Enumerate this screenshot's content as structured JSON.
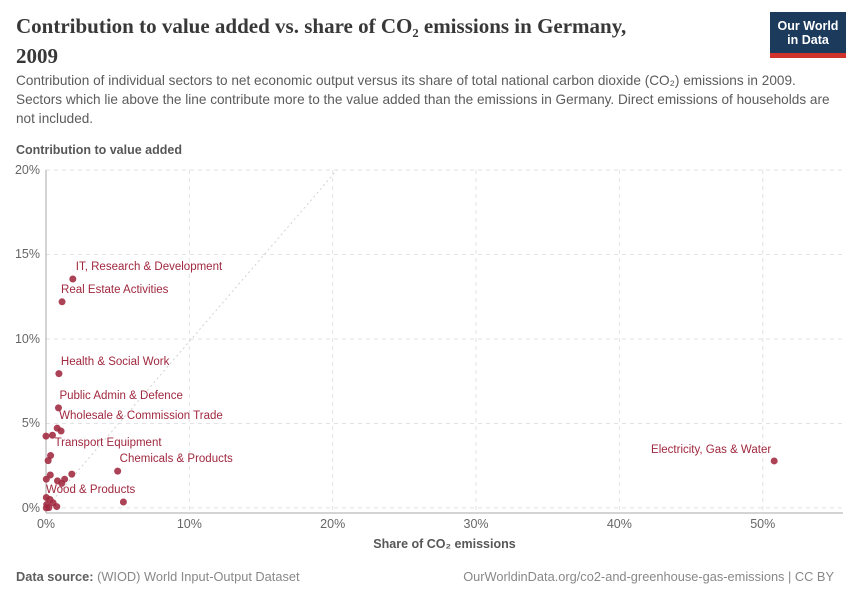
{
  "header": {
    "title_lines": [
      "Contribution to value added vs. share of CO₂ emissions in Germany,",
      "2009"
    ],
    "logo": {
      "line1": "Our World",
      "line2": "in Data"
    }
  },
  "subtitle": "Contribution of individual sectors to net economic output versus its share of total national carbon dioxide (CO₂) emissions in 2009. Sectors which lie above the line contribute more to the value added than the emissions in Germany. Direct emissions of households are not included.",
  "chart_data": {
    "type": "scatter",
    "title": "Contribution to value added vs. share of CO₂ emissions in Germany, 2009",
    "xlabel": "Share of CO₂ emissions",
    "ylabel": "Contribution to value added",
    "xlim": [
      0,
      55.6
    ],
    "ylim": [
      -0.3,
      20
    ],
    "x_ticks": [
      0,
      10,
      20,
      30,
      40,
      50
    ],
    "y_ticks": [
      0,
      5,
      10,
      15,
      20
    ],
    "tick_suffix": "%",
    "grid": true,
    "legend_position": "none",
    "reference_line": {
      "name": "parity line (share of emissions = share of value added)",
      "from": [
        0,
        0
      ],
      "to": [
        20.3,
        20
      ]
    },
    "series": [
      {
        "name": "Labeled sectors",
        "points": [
          {
            "label": "IT, Research & Development",
            "x": 1.87,
            "y": 13.55,
            "anchor": "start",
            "dx": 3,
            "dy": -5
          },
          {
            "label": "Real Estate Activities",
            "x": 1.12,
            "y": 12.2,
            "anchor": "start",
            "dx": -1,
            "dy": -5
          },
          {
            "label": "Health & Social Work",
            "x": 0.9,
            "y": 7.95,
            "anchor": "start",
            "dx": 2,
            "dy": -5
          },
          {
            "label": "Public Admin & Defence",
            "x": 0.87,
            "y": 5.92,
            "anchor": "start",
            "dx": 1,
            "dy": -5
          },
          {
            "label": "Wholesale & Commission Trade",
            "x": 0.78,
            "y": 4.72,
            "anchor": "start",
            "dx": 2,
            "dy": -5
          },
          {
            "label": "Transport Equipment",
            "x": 0.32,
            "y": 3.1,
            "anchor": "start",
            "dx": 4,
            "dy": -6
          },
          {
            "label": "Chemicals & Products",
            "x": 5.0,
            "y": 2.18,
            "anchor": "start",
            "dx": 2,
            "dy": -5
          },
          {
            "label": "Wood & Products",
            "x": 0.28,
            "y": 0.5,
            "anchor": "start",
            "dx": -4,
            "dy": -2
          },
          {
            "label": "Electricity, Gas & Water",
            "x": 50.8,
            "y": 2.78,
            "anchor": "end",
            "dx": -3,
            "dy": -4
          }
        ]
      },
      {
        "name": "Other sectors (unlabeled)",
        "points": [
          [
            0.0,
            4.25
          ],
          [
            0.45,
            4.3
          ],
          [
            1.05,
            4.55
          ],
          [
            0.15,
            2.8
          ],
          [
            0.3,
            1.95
          ],
          [
            0.02,
            1.7
          ],
          [
            0.8,
            1.6
          ],
          [
            1.3,
            1.7
          ],
          [
            1.8,
            2.0
          ],
          [
            1.1,
            1.45
          ],
          [
            0.02,
            0.62
          ],
          [
            0.05,
            0.2
          ],
          [
            0.5,
            0.3
          ],
          [
            0.75,
            0.08
          ],
          [
            0.2,
            0.02
          ],
          [
            0.02,
            0.0
          ],
          [
            5.4,
            0.35
          ]
        ]
      }
    ],
    "colors": {
      "point": "#a0283f",
      "label": "#a0283f",
      "grid": "#e2e2e2",
      "axis": "#a9a9a9",
      "reference": "#d2d2d2"
    }
  },
  "footer": {
    "source_label": "Data source:",
    "source_value": " (WIOD) World Input-Output Dataset",
    "credit": "OurWorldinData.org/co2-and-greenhouse-gas-emissions | CC BY"
  }
}
